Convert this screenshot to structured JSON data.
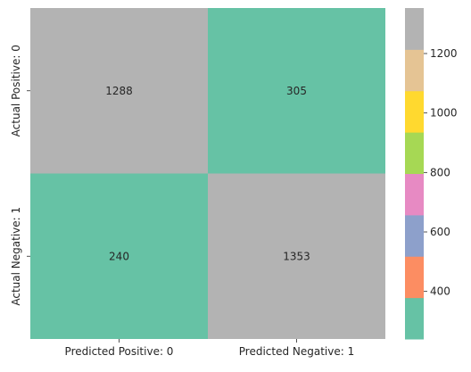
{
  "chart_data": {
    "type": "heatmap",
    "title": "",
    "xlabel": "",
    "ylabel": "",
    "x_tick_labels": [
      "Predicted Positive: 0",
      "Predicted Negative: 1"
    ],
    "y_tick_labels": [
      "Actual Positive: 0",
      "Actual Negative: 1"
    ],
    "values": [
      [
        1288,
        305
      ],
      [
        240,
        1353
      ]
    ],
    "colorbar": {
      "range": [
        240,
        1353
      ],
      "ticks": [
        400,
        600,
        800,
        1000,
        1200
      ],
      "colormap": "Set2",
      "colors": [
        "#66c2a5",
        "#fc8d62",
        "#8da0cb",
        "#e78ac3",
        "#a6d854",
        "#ffd92f",
        "#e5c494",
        "#b3b3b3"
      ]
    },
    "grid": false
  }
}
